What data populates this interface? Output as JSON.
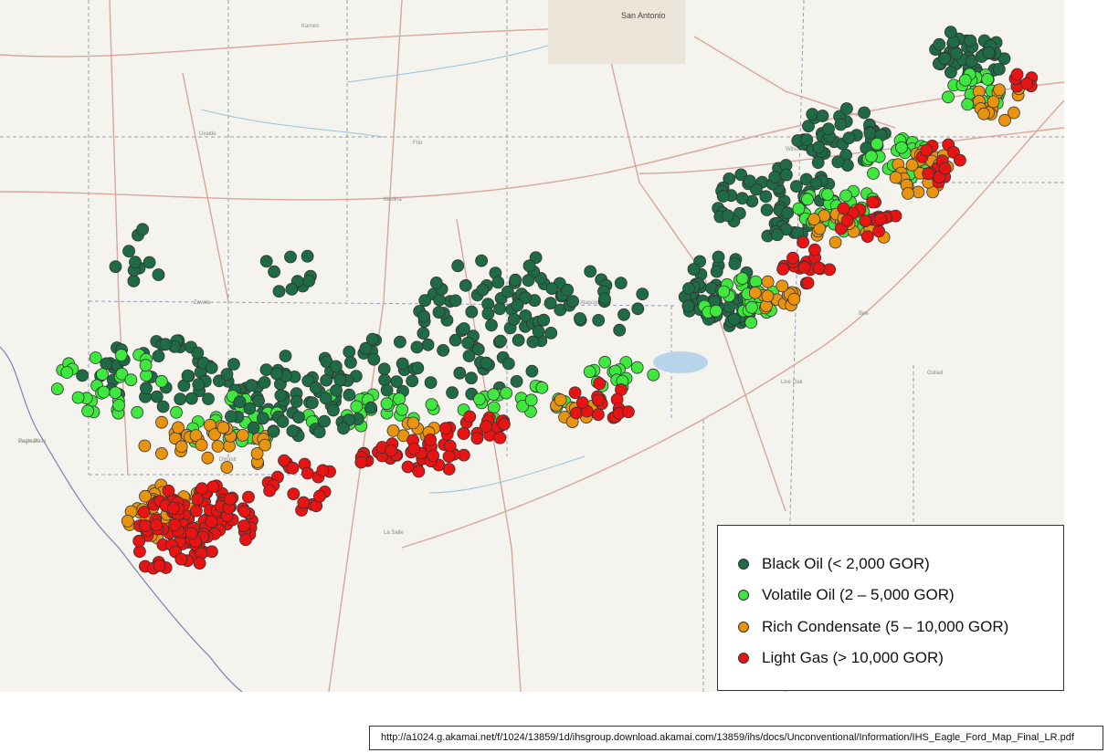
{
  "map_labels": {
    "city": "San Antonio",
    "place_labels": [
      "Uvalde",
      "Frio",
      "Zavala",
      "Atascosa",
      "Wilson",
      "Dimmit",
      "La Salle",
      "Live Oak",
      "Bee",
      "Goliad",
      "Karnes",
      "Medina",
      "Pearsall",
      "Eagle Pass"
    ]
  },
  "legend": {
    "items": [
      {
        "label": "Black Oil (< 2,000 GOR)",
        "color": "#1e6b46"
      },
      {
        "label": "Volatile Oil (2 – 5,000 GOR)",
        "color": "#3ee83e"
      },
      {
        "label": "Rich Condensate (5 – 10,000 GOR)",
        "color": "#e8940f"
      },
      {
        "label": "Light Gas (> 10,000 GOR)",
        "color": "#e81414"
      }
    ]
  },
  "source_url": "http://a1024.g.akamai.net/f/1024/13859/1d/ihsgroup.download.akamai.com/13859/ihs/docs/Unconventional/Information/IHS_Eagle_Ford_Map_Final_LR.pdf"
}
